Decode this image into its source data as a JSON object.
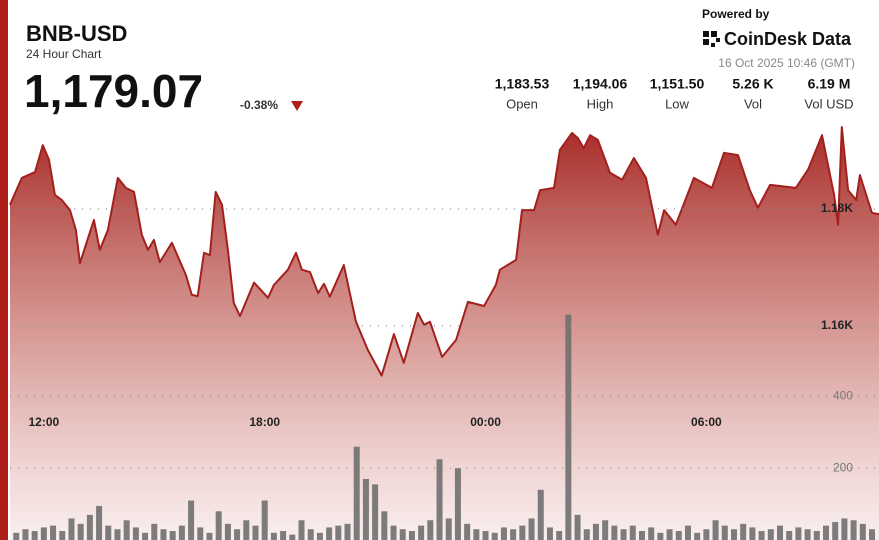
{
  "header": {
    "title": "BNB-USD",
    "subtitle": "24 Hour Chart",
    "price": "1,179.07",
    "change": "-0.38%",
    "powered_by": "Powered by",
    "brand": "CoinDesk Data",
    "timestamp": "16 Oct 2025 10:46 (GMT)"
  },
  "stats": [
    {
      "value": "1,183.53",
      "label": "Open"
    },
    {
      "value": "1,194.06",
      "label": "High"
    },
    {
      "value": "1,151.50",
      "label": "Low"
    },
    {
      "value": "5.26 K",
      "label": "Vol"
    },
    {
      "value": "6.19 M",
      "label": "Vol USD"
    }
  ],
  "chart_data": [
    {
      "type": "area",
      "color": "#a3201c",
      "x": [
        11.08,
        11.4,
        11.76,
        11.97,
        12.14,
        12.3,
        12.49,
        12.71,
        12.87,
        12.98,
        13.2,
        13.36,
        13.52,
        13.74,
        14.01,
        14.23,
        14.45,
        14.66,
        14.83,
        14.99,
        15.15,
        15.48,
        15.86,
        16.02,
        16.18,
        16.35,
        16.51,
        16.67,
        16.84,
        17.0,
        17.16,
        17.33,
        17.71,
        18.09,
        18.25,
        18.63,
        18.85,
        19.01,
        19.23,
        19.45,
        19.61,
        19.77,
        20.15,
        20.48,
        20.8,
        21.18,
        21.51,
        21.78,
        22.16,
        22.33,
        22.49,
        22.82,
        23.2,
        23.52,
        23.96,
        24.28,
        24.39,
        24.83,
        24.99,
        25.32,
        25.48,
        25.86,
        26.02,
        26.35,
        26.51,
        26.67,
        26.84,
        27.05,
        27.38,
        27.71,
        28.03,
        28.36,
        28.68,
        28.85,
        29.17,
        29.66,
        30.15,
        30.48,
        30.86,
        31.18,
        31.4,
        31.73,
        32.43,
        32.76,
        33.14,
        33.47,
        33.58,
        33.68,
        33.85,
        34.07,
        34.17,
        34.5,
        34.69
      ],
      "values": [
        1180.7,
        1185.3,
        1186.3,
        1190.9,
        1188.4,
        1182.4,
        1181.5,
        1179.8,
        1176.4,
        1170.7,
        1175.0,
        1178.1,
        1173.0,
        1176.4,
        1185.3,
        1183.6,
        1182.9,
        1175.6,
        1173.0,
        1174.7,
        1170.9,
        1174.2,
        1168.7,
        1165.3,
        1165.1,
        1172.5,
        1172.1,
        1182.9,
        1180.7,
        1173.0,
        1163.9,
        1161.7,
        1167.4,
        1164.8,
        1167.0,
        1169.6,
        1172.5,
        1169.6,
        1169.2,
        1165.6,
        1167.2,
        1165.0,
        1170.4,
        1160.7,
        1155.9,
        1151.5,
        1158.6,
        1153.7,
        1162.2,
        1160.2,
        1160.7,
        1154.7,
        1157.6,
        1164.1,
        1163.4,
        1167.0,
        1169.6,
        1171.3,
        1179.8,
        1179.8,
        1183.2,
        1183.6,
        1190.1,
        1193.0,
        1192.1,
        1190.4,
        1192.6,
        1191.8,
        1186.2,
        1185.0,
        1188.7,
        1185.3,
        1175.6,
        1179.8,
        1177.3,
        1185.3,
        1183.6,
        1189.6,
        1189.2,
        1183.2,
        1180.2,
        1184.1,
        1183.6,
        1186.7,
        1192.6,
        1182.4,
        1177.3,
        1194.0,
        1183.2,
        1181.5,
        1185.8,
        1179.3,
        1179.1
      ],
      "xlim": [
        11.08,
        34.69
      ],
      "ylim": [
        1123.4,
        1195.2
      ],
      "xticks": [
        {
          "value": 12,
          "label": "12:00"
        },
        {
          "value": 18,
          "label": "18:00"
        },
        {
          "value": 24,
          "label": "00:00"
        },
        {
          "value": 30,
          "label": "06:00"
        }
      ],
      "yticks": [
        {
          "value": 1160,
          "label": "1.16K"
        },
        {
          "value": 1180,
          "label": "1.18K"
        }
      ],
      "grid": true
    },
    {
      "type": "bar",
      "color": "#6f6f6f",
      "x": [
        11.25,
        11.5,
        11.75,
        12,
        12.25,
        12.5,
        12.75,
        13,
        13.25,
        13.5,
        13.75,
        14,
        14.25,
        14.5,
        14.75,
        15,
        15.25,
        15.5,
        15.75,
        16,
        16.25,
        16.5,
        16.75,
        17,
        17.25,
        17.5,
        17.75,
        18,
        18.25,
        18.5,
        18.75,
        19,
        19.25,
        19.5,
        19.75,
        20,
        20.25,
        20.5,
        20.75,
        21,
        21.25,
        21.5,
        21.75,
        22,
        22.25,
        22.5,
        22.75,
        23,
        23.25,
        23.5,
        23.75,
        24,
        24.25,
        24.5,
        24.75,
        25,
        25.25,
        25.5,
        25.75,
        26,
        26.25,
        26.5,
        26.75,
        27,
        27.25,
        27.5,
        27.75,
        28,
        28.25,
        28.5,
        28.75,
        29,
        29.25,
        29.5,
        29.75,
        30,
        30.25,
        30.5,
        30.75,
        31,
        31.25,
        31.5,
        31.75,
        32,
        32.25,
        32.5,
        32.75,
        33,
        33.25,
        33.5,
        33.75,
        34,
        34.25,
        34.5
      ],
      "values": [
        20,
        30,
        25,
        35,
        40,
        25,
        60,
        45,
        70,
        95,
        40,
        30,
        55,
        35,
        20,
        45,
        30,
        25,
        40,
        110,
        35,
        20,
        80,
        45,
        30,
        55,
        40,
        110,
        20,
        25,
        15,
        55,
        30,
        20,
        35,
        40,
        45,
        260,
        170,
        155,
        80,
        40,
        30,
        25,
        40,
        55,
        225,
        60,
        200,
        45,
        30,
        25,
        20,
        35,
        30,
        40,
        60,
        140,
        35,
        25,
        628,
        70,
        30,
        45,
        55,
        40,
        30,
        40,
        25,
        35,
        20,
        30,
        25,
        40,
        20,
        30,
        55,
        40,
        30,
        45,
        35,
        25,
        30,
        40,
        25,
        35,
        30,
        25,
        40,
        50,
        60,
        55,
        45,
        30
      ],
      "xlim": [
        11.08,
        34.69
      ],
      "ylim": [
        0,
        1170
      ],
      "yticks": [
        200,
        400
      ],
      "grid": true
    }
  ]
}
